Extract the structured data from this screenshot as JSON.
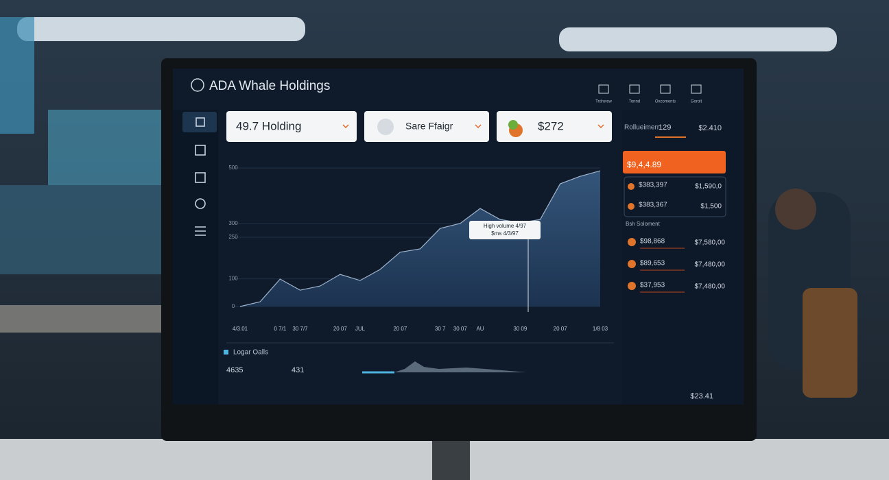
{
  "header": {
    "title": "ADA Whale Holdings",
    "tools": [
      "Trdrorew",
      "Tonnd",
      "Oxcoments",
      "Gorolt"
    ]
  },
  "filters": [
    "49.7 Holding",
    "Sare Ffaigr",
    "$272"
  ],
  "chart_data": {
    "type": "area",
    "categories": [
      "4/3.01",
      null,
      "0 7/1",
      "30 7/7",
      null,
      "20 07",
      "JUL",
      null,
      "20 07",
      null,
      "30 7",
      "30 07",
      "AU",
      null,
      "30 09",
      null,
      "20 07",
      null,
      "1/8 03"
    ],
    "values": [
      0,
      17,
      99,
      59,
      74,
      116,
      94,
      134,
      196,
      208,
      282,
      300,
      354,
      314,
      302,
      314,
      443,
      470,
      490
    ],
    "color": "#2b4a6e",
    "ylim": [
      0,
      500
    ],
    "yticks": [
      0,
      100,
      250,
      300,
      500
    ],
    "annotation": [
      "High volume 4/97",
      "$ms 4/3/97"
    ]
  },
  "legend": {
    "label": "Logar Oalls",
    "values": [
      "4635",
      "431"
    ]
  },
  "side": {
    "summary": {
      "label": "Rollueimerr",
      "count": "129",
      "amount": "$2.410"
    },
    "highlight": "$9,4,4.89",
    "top": [
      {
        "a": "$383,397",
        "b": "$1,590,0"
      },
      {
        "a": "$383,367",
        "b": "$1,500"
      }
    ],
    "section": "Bsh Soloment",
    "rows": [
      {
        "a": "$98,868",
        "b": "$7,580,00"
      },
      {
        "a": "$89,653",
        "b": "$7,480,00"
      },
      {
        "a": "$37,953",
        "b": "$7,480,00"
      }
    ]
  },
  "footer": "$23.41"
}
